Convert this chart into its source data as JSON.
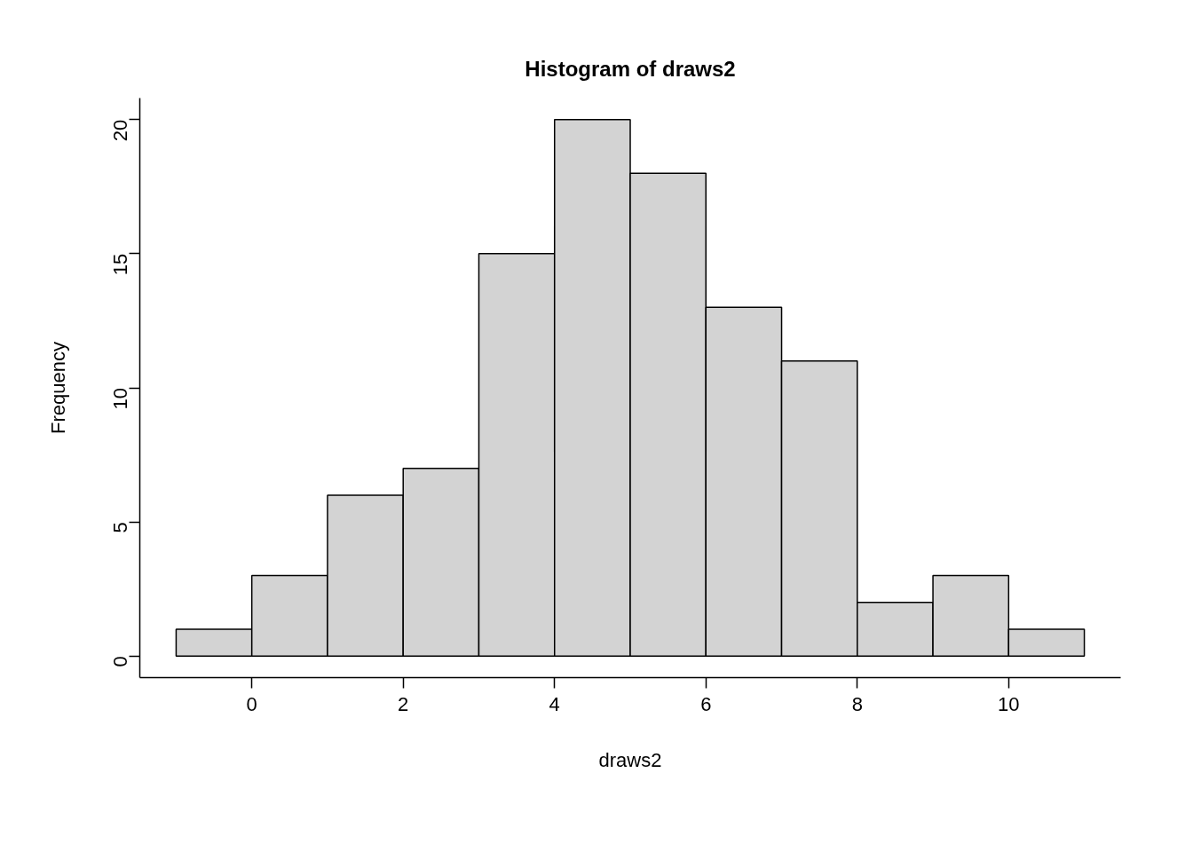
{
  "chart_data": {
    "type": "histogram",
    "title": "Histogram of draws2",
    "xlabel": "draws2",
    "ylabel": "Frequency",
    "bins": [
      -1,
      0,
      1,
      2,
      3,
      4,
      5,
      6,
      7,
      8,
      9,
      10,
      11
    ],
    "values": [
      1,
      3,
      6,
      7,
      15,
      20,
      18,
      13,
      11,
      2,
      3,
      1
    ],
    "color": "#d3d3d3",
    "xlim": [
      -1.48,
      11.48
    ],
    "ylim": [
      -0.8,
      20.8
    ],
    "xticks": [
      0,
      2,
      4,
      6,
      8,
      10
    ],
    "yticks": [
      0,
      5,
      10,
      15,
      20
    ],
    "grid": false
  }
}
